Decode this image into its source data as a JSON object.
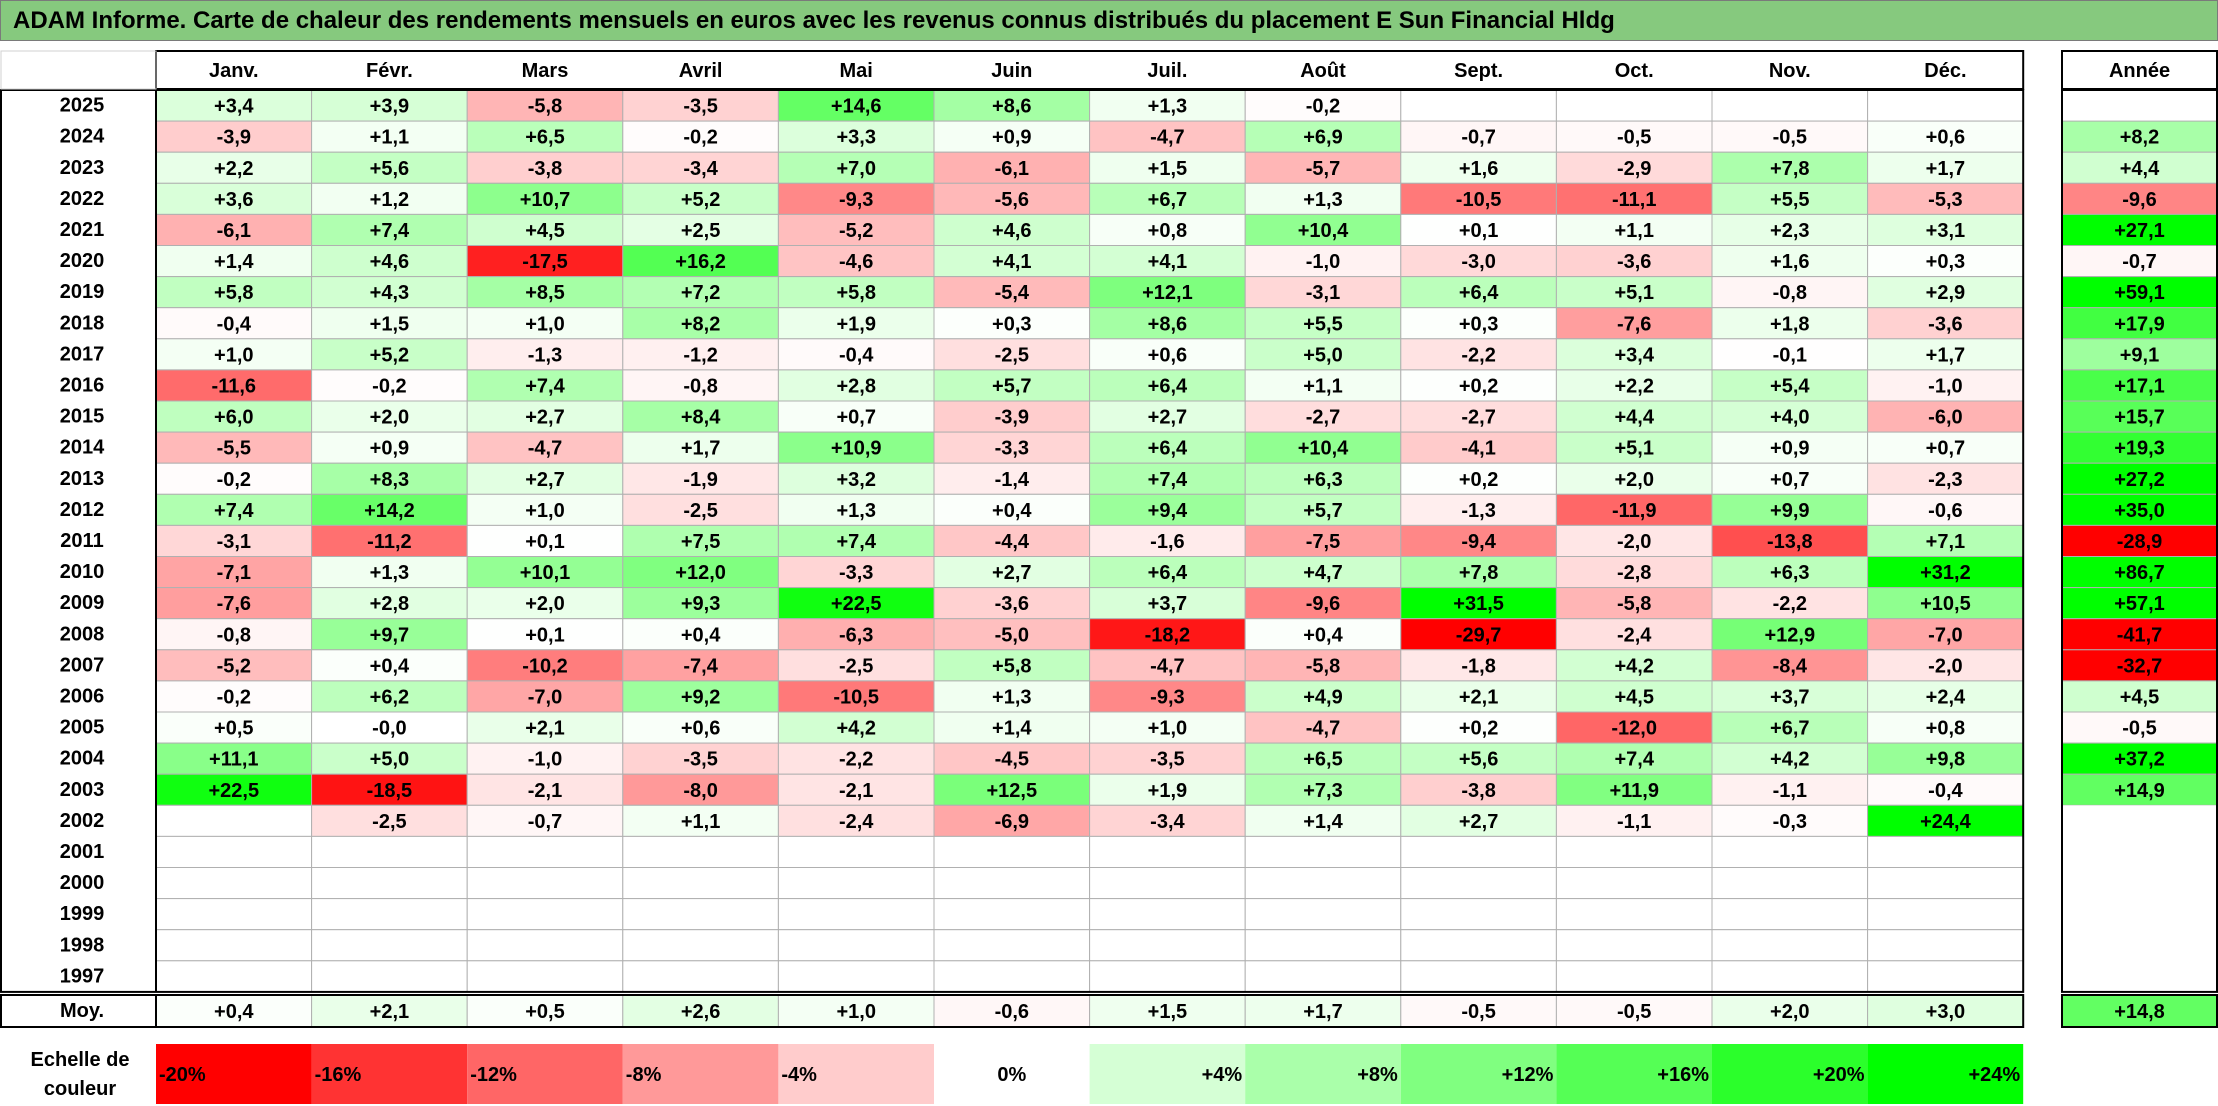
{
  "title": "ADAM Informe. Carte de chaleur des rendements mensuels en euros avec les revenus connus distribués du placement E Sun Financial Hldg",
  "colors": {
    "title_bg": "#86c97e",
    "negative_max": "#ff0000",
    "neutral": "#ffffff",
    "positive_max": "#00ff00",
    "grid": "#b0b0b0",
    "border": "#000000"
  },
  "chart_data": {
    "type": "heatmap",
    "columns": [
      "Janv.",
      "Févr.",
      "Mars",
      "Avril",
      "Mai",
      "Juin",
      "Juil.",
      "Août",
      "Sept.",
      "Oct.",
      "Nov.",
      "Déc."
    ],
    "year_column": "Année",
    "rows": [
      {
        "year": "2025",
        "values": [
          "+3,4",
          "+3,9",
          "-5,8",
          "-3,5",
          "+14,6",
          "+8,6",
          "+1,3",
          "-0,2",
          "",
          "",
          "",
          ""
        ],
        "annual": ""
      },
      {
        "year": "2024",
        "values": [
          "-3,9",
          "+1,1",
          "+6,5",
          "-0,2",
          "+3,3",
          "+0,9",
          "-4,7",
          "+6,9",
          "-0,7",
          "-0,5",
          "-0,5",
          "+0,6"
        ],
        "annual": "+8,2"
      },
      {
        "year": "2023",
        "values": [
          "+2,2",
          "+5,6",
          "-3,8",
          "-3,4",
          "+7,0",
          "-6,1",
          "+1,5",
          "-5,7",
          "+1,6",
          "-2,9",
          "+7,8",
          "+1,7"
        ],
        "annual": "+4,4"
      },
      {
        "year": "2022",
        "values": [
          "+3,6",
          "+1,2",
          "+10,7",
          "+5,2",
          "-9,3",
          "-5,6",
          "+6,7",
          "+1,3",
          "-10,5",
          "-11,1",
          "+5,5",
          "-5,3"
        ],
        "annual": "-9,6"
      },
      {
        "year": "2021",
        "values": [
          "-6,1",
          "+7,4",
          "+4,5",
          "+2,5",
          "-5,2",
          "+4,6",
          "+0,8",
          "+10,4",
          "+0,1",
          "+1,1",
          "+2,3",
          "+3,1"
        ],
        "annual": "+27,1"
      },
      {
        "year": "2020",
        "values": [
          "+1,4",
          "+4,6",
          "-17,5",
          "+16,2",
          "-4,6",
          "+4,1",
          "+4,1",
          "-1,0",
          "-3,0",
          "-3,6",
          "+1,6",
          "+0,3"
        ],
        "annual": "-0,7"
      },
      {
        "year": "2019",
        "values": [
          "+5,8",
          "+4,3",
          "+8,5",
          "+7,2",
          "+5,8",
          "-5,4",
          "+12,1",
          "-3,1",
          "+6,4",
          "+5,1",
          "-0,8",
          "+2,9"
        ],
        "annual": "+59,1"
      },
      {
        "year": "2018",
        "values": [
          "-0,4",
          "+1,5",
          "+1,0",
          "+8,2",
          "+1,9",
          "+0,3",
          "+8,6",
          "+5,5",
          "+0,3",
          "-7,6",
          "+1,8",
          "-3,6"
        ],
        "annual": "+17,9"
      },
      {
        "year": "2017",
        "values": [
          "+1,0",
          "+5,2",
          "-1,3",
          "-1,2",
          "-0,4",
          "-2,5",
          "+0,6",
          "+5,0",
          "-2,2",
          "+3,4",
          "-0,1",
          "+1,7"
        ],
        "annual": "+9,1"
      },
      {
        "year": "2016",
        "values": [
          "-11,6",
          "-0,2",
          "+7,4",
          "-0,8",
          "+2,8",
          "+5,7",
          "+6,4",
          "+1,1",
          "+0,2",
          "+2,2",
          "+5,4",
          "-1,0"
        ],
        "annual": "+17,1"
      },
      {
        "year": "2015",
        "values": [
          "+6,0",
          "+2,0",
          "+2,7",
          "+8,4",
          "+0,7",
          "-3,9",
          "+2,7",
          "-2,7",
          "-2,7",
          "+4,4",
          "+4,0",
          "-6,0"
        ],
        "annual": "+15,7"
      },
      {
        "year": "2014",
        "values": [
          "-5,5",
          "+0,9",
          "-4,7",
          "+1,7",
          "+10,9",
          "-3,3",
          "+6,4",
          "+10,4",
          "-4,1",
          "+5,1",
          "+0,9",
          "+0,7"
        ],
        "annual": "+19,3"
      },
      {
        "year": "2013",
        "values": [
          "-0,2",
          "+8,3",
          "+2,7",
          "-1,9",
          "+3,2",
          "-1,4",
          "+7,4",
          "+6,3",
          "+0,2",
          "+2,0",
          "+0,7",
          "-2,3"
        ],
        "annual": "+27,2"
      },
      {
        "year": "2012",
        "values": [
          "+7,4",
          "+14,2",
          "+1,0",
          "-2,5",
          "+1,3",
          "+0,4",
          "+9,4",
          "+5,7",
          "-1,3",
          "-11,9",
          "+9,9",
          "-0,6"
        ],
        "annual": "+35,0"
      },
      {
        "year": "2011",
        "values": [
          "-3,1",
          "-11,2",
          "+0,1",
          "+7,5",
          "+7,4",
          "-4,4",
          "-1,6",
          "-7,5",
          "-9,4",
          "-2,0",
          "-13,8",
          "+7,1"
        ],
        "annual": "-28,9"
      },
      {
        "year": "2010",
        "values": [
          "-7,1",
          "+1,3",
          "+10,1",
          "+12,0",
          "-3,3",
          "+2,7",
          "+6,4",
          "+4,7",
          "+7,8",
          "-2,8",
          "+6,3",
          "+31,2"
        ],
        "annual": "+86,7"
      },
      {
        "year": "2009",
        "values": [
          "-7,6",
          "+2,8",
          "+2,0",
          "+9,3",
          "+22,5",
          "-3,6",
          "+3,7",
          "-9,6",
          "+31,5",
          "-5,8",
          "-2,2",
          "+10,5"
        ],
        "annual": "+57,1"
      },
      {
        "year": "2008",
        "values": [
          "-0,8",
          "+9,7",
          "+0,1",
          "+0,4",
          "-6,3",
          "-5,0",
          "-18,2",
          "+0,4",
          "-29,7",
          "-2,4",
          "+12,9",
          "-7,0"
        ],
        "annual": "-41,7"
      },
      {
        "year": "2007",
        "values": [
          "-5,2",
          "+0,4",
          "-10,2",
          "-7,4",
          "-2,5",
          "+5,8",
          "-4,7",
          "-5,8",
          "-1,8",
          "+4,2",
          "-8,4",
          "-2,0"
        ],
        "annual": "-32,7"
      },
      {
        "year": "2006",
        "values": [
          "-0,2",
          "+6,2",
          "-7,0",
          "+9,2",
          "-10,5",
          "+1,3",
          "-9,3",
          "+4,9",
          "+2,1",
          "+4,5",
          "+3,7",
          "+2,4"
        ],
        "annual": "+4,5"
      },
      {
        "year": "2005",
        "values": [
          "+0,5",
          "-0,0",
          "+2,1",
          "+0,6",
          "+4,2",
          "+1,4",
          "+1,0",
          "-4,7",
          "+0,2",
          "-12,0",
          "+6,7",
          "+0,8"
        ],
        "annual": "-0,5"
      },
      {
        "year": "2004",
        "values": [
          "+11,1",
          "+5,0",
          "-1,0",
          "-3,5",
          "-2,2",
          "-4,5",
          "-3,5",
          "+6,5",
          "+5,6",
          "+7,4",
          "+4,2",
          "+9,8"
        ],
        "annual": "+37,2"
      },
      {
        "year": "2003",
        "values": [
          "+22,5",
          "-18,5",
          "-2,1",
          "-8,0",
          "-2,1",
          "+12,5",
          "+1,9",
          "+7,3",
          "-3,8",
          "+11,9",
          "-1,1",
          "-0,4"
        ],
        "annual": "+14,9"
      },
      {
        "year": "2002",
        "values": [
          "",
          "-2,5",
          "-0,7",
          "+1,1",
          "-2,4",
          "-6,9",
          "-3,4",
          "+1,4",
          "+2,7",
          "-1,1",
          "-0,3",
          "+24,4"
        ],
        "annual": ""
      },
      {
        "year": "2001",
        "values": [
          "",
          "",
          "",
          "",
          "",
          "",
          "",
          "",
          "",
          "",
          "",
          ""
        ],
        "annual": ""
      },
      {
        "year": "2000",
        "values": [
          "",
          "",
          "",
          "",
          "",
          "",
          "",
          "",
          "",
          "",
          "",
          ""
        ],
        "annual": ""
      },
      {
        "year": "1999",
        "values": [
          "",
          "",
          "",
          "",
          "",
          "",
          "",
          "",
          "",
          "",
          "",
          ""
        ],
        "annual": ""
      },
      {
        "year": "1998",
        "values": [
          "",
          "",
          "",
          "",
          "",
          "",
          "",
          "",
          "",
          "",
          "",
          ""
        ],
        "annual": ""
      },
      {
        "year": "1997",
        "values": [
          "",
          "",
          "",
          "",
          "",
          "",
          "",
          "",
          "",
          "",
          "",
          ""
        ],
        "annual": ""
      }
    ],
    "average": {
      "label": "Moy.",
      "values": [
        "+0,4",
        "+2,1",
        "+0,5",
        "+2,6",
        "+1,0",
        "-0,6",
        "+1,5",
        "+1,7",
        "-0,5",
        "-0,5",
        "+2,0",
        "+3,0"
      ],
      "annual": "+14,8"
    },
    "scale": {
      "label": "Echelle de couleur",
      "steps": [
        {
          "label": "-20%",
          "value": -20
        },
        {
          "label": "-16%",
          "value": -16
        },
        {
          "label": "-12%",
          "value": -12
        },
        {
          "label": "-8%",
          "value": -8
        },
        {
          "label": "-4%",
          "value": -4
        },
        {
          "label": "0%",
          "value": 0
        },
        {
          "label": "+4%",
          "value": 4
        },
        {
          "label": "+8%",
          "value": 8
        },
        {
          "label": "+12%",
          "value": 12
        },
        {
          "label": "+16%",
          "value": 16
        },
        {
          "label": "+20%",
          "value": 20
        },
        {
          "label": "+24%",
          "value": 24
        }
      ]
    }
  }
}
